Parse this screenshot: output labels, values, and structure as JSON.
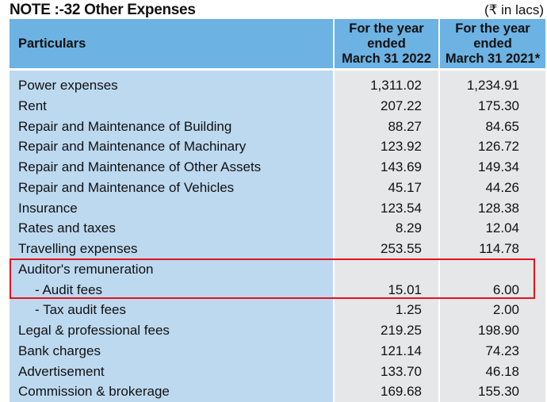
{
  "title": "NOTE :-32 Other Expenses",
  "unit": "(₹ in lacs)",
  "columns": [
    "Particulars",
    "For the year ended March 31 2022",
    "For the year ended March 31 2021*"
  ],
  "rows": [
    {
      "label": "Power expenses",
      "y2022": "1,311.02",
      "y2021": "1,234.91"
    },
    {
      "label": "Rent",
      "y2022": "207.22",
      "y2021": "175.30"
    },
    {
      "label": "Repair and Maintenance of Building",
      "y2022": "88.27",
      "y2021": "84.65"
    },
    {
      "label": "Repair and Maintenance of Machinary",
      "y2022": "123.92",
      "y2021": "126.72"
    },
    {
      "label": "Repair and Maintenance of Other Assets",
      "y2022": "143.69",
      "y2021": "149.34"
    },
    {
      "label": "Repair and Maintenance of Vehicles",
      "y2022": "45.17",
      "y2021": "44.26"
    },
    {
      "label": "Insurance",
      "y2022": "123.54",
      "y2021": "128.38"
    },
    {
      "label": "Rates and taxes",
      "y2022": "8.29",
      "y2021": "12.04"
    },
    {
      "label": "Travelling expenses",
      "y2022": "253.55",
      "y2021": "114.78"
    },
    {
      "label": "Auditor's remuneration",
      "y2022": "",
      "y2021": ""
    },
    {
      "label": "- Audit fees",
      "y2022": "15.01",
      "y2021": "6.00",
      "indent": true
    },
    {
      "label": "- Tax audit fees",
      "y2022": "1.25",
      "y2021": "2.00",
      "indent": true
    },
    {
      "label": "Legal & professional fees",
      "y2022": "219.25",
      "y2021": "198.90"
    },
    {
      "label": "Bank charges",
      "y2022": "121.14",
      "y2021": "74.23"
    },
    {
      "label": "Advertisement",
      "y2022": "133.70",
      "y2021": "46.18"
    },
    {
      "label": "Commission & brokerage",
      "y2022": "169.68",
      "y2021": "155.30"
    }
  ],
  "highlight_color": "#e4121d"
}
